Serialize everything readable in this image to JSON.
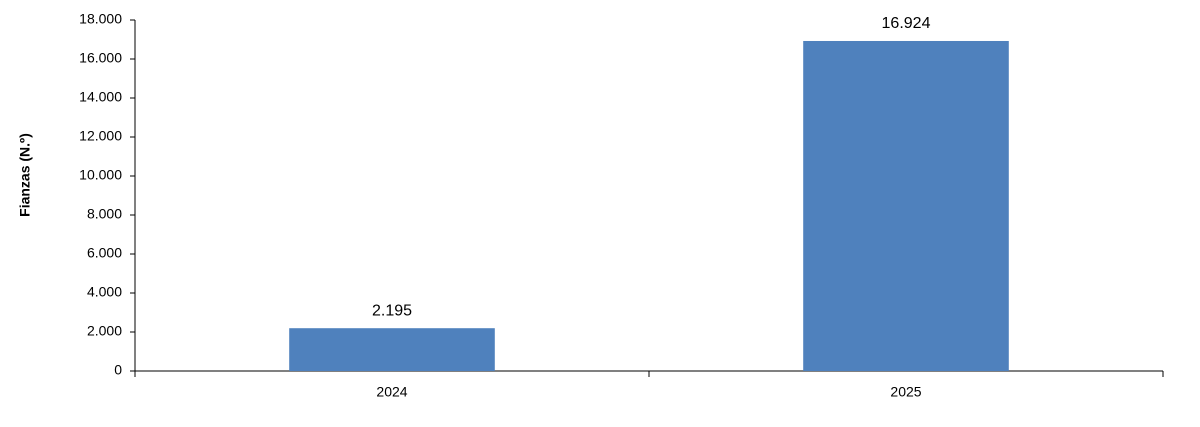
{
  "chart_data": {
    "type": "bar",
    "y_label": "Fianzas (N.º)",
    "categories": [
      "2024",
      "2025"
    ],
    "values": [
      2195,
      16924
    ],
    "value_labels": [
      "2.195",
      "16.924"
    ],
    "color": "#4f81bd",
    "ylim": [
      0,
      18000
    ],
    "yticks": [
      0,
      {
        "value": 2000,
        "label": "2.000"
      },
      {
        "value": 4000,
        "label": "4.000"
      },
      {
        "value": 6000,
        "label": "6.000"
      },
      {
        "value": 8000,
        "label": "8.000"
      },
      {
        "value": 10000,
        "label": "10.000"
      },
      {
        "value": 12000,
        "label": "12.000"
      },
      {
        "value": 14000,
        "label": "14.000"
      },
      {
        "value": 16000,
        "label": "16.000"
      },
      {
        "value": 18000,
        "label": "18.000"
      }
    ],
    "grid": false
  }
}
